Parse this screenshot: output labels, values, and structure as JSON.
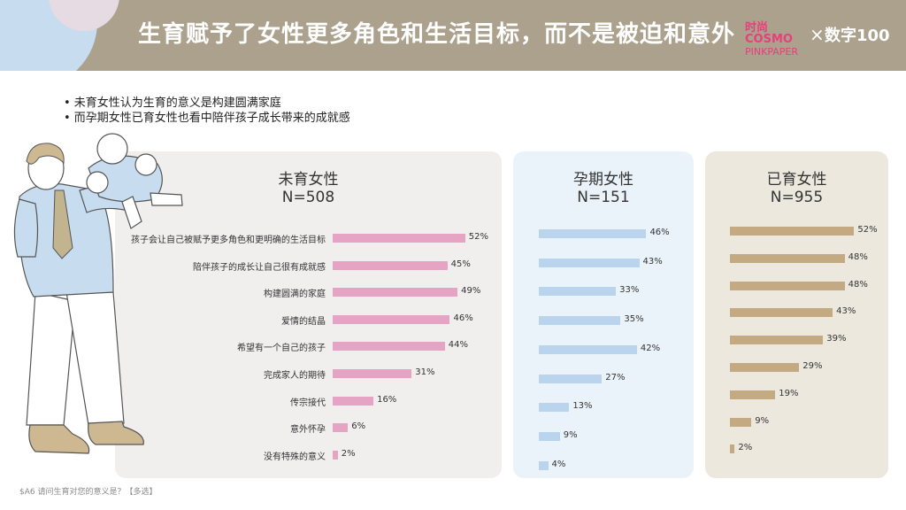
{
  "header": {
    "title": "生育赋予了女性更多角色和生活目标，而不是被迫和意外",
    "logo_line1": "时尚COSMO",
    "logo_line2": "PINKPAPER",
    "logo_separator": "×",
    "logo_partner": "数字100"
  },
  "bullets": [
    "• 未育女性认为生育的意义是构建圆满家庭",
    "• 而孕期女性已育女性也看中陪伴孩子成长带来的成就感"
  ],
  "footnote": "$A6 请问生育对您的意义是？【多选】",
  "colors": {
    "header_bg": "#aba18c",
    "pink": "#e5a4c3",
    "blue": "#b9d4ec",
    "tan": "#c3aa83"
  },
  "chart_data": {
    "type": "bar",
    "orientation": "horizontal",
    "categories": [
      "孩子会让自己被赋予更多角色和更明确的生活目标",
      "陪伴孩子的成长让自己很有成就感",
      "构建圆满的家庭",
      "爱情的结晶",
      "希望有一个自己的孩子",
      "完成家人的期待",
      "传宗接代",
      "意外怀孕",
      "没有特殊的意义"
    ],
    "xlim": [
      0,
      100
    ],
    "series": [
      {
        "name": "未育女性",
        "n_label": "N=508",
        "color": "#e5a4c3",
        "values": [
          52,
          45,
          49,
          46,
          44,
          31,
          16,
          6,
          2
        ],
        "labels": [
          "52%",
          "45%",
          "49%",
          "46%",
          "44%",
          "31%",
          "16%",
          "6%",
          "2%"
        ]
      },
      {
        "name": "孕期女性",
        "n_label": "N=151",
        "color": "#b9d4ec",
        "values": [
          46,
          43,
          33,
          35,
          42,
          27,
          13,
          9,
          4
        ],
        "labels": [
          "46%",
          "43%",
          "33%",
          "35%",
          "42%",
          "27%",
          "13%",
          "9%",
          "4%"
        ]
      },
      {
        "name": "已育女性",
        "n_label": "N=955",
        "color": "#c3aa83",
        "values": [
          52,
          48,
          48,
          43,
          39,
          29,
          19,
          9,
          2
        ],
        "labels": [
          "52%",
          "48%",
          "48%",
          "43%",
          "39%",
          "29%",
          "19%",
          "9%",
          "2%"
        ]
      }
    ]
  }
}
